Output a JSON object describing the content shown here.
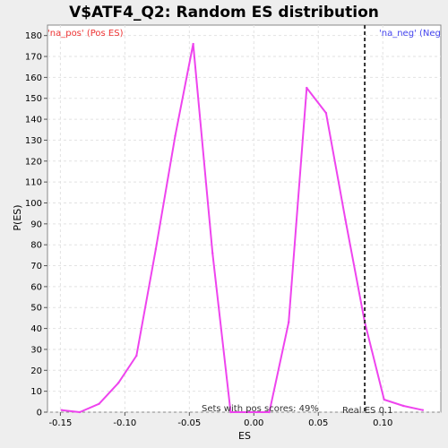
{
  "chart_data": {
    "type": "line",
    "title": "V$ATF4_Q2: Random ES distribution",
    "xlabel": "ES",
    "ylabel": "P(ES)",
    "xlim": [
      -0.16,
      0.145
    ],
    "ylim": [
      0,
      185
    ],
    "x_ticks": [
      -0.15,
      -0.1,
      -0.05,
      0.0,
      0.05,
      0.1
    ],
    "x_tick_labels": [
      "-0.15",
      "-0.10",
      "-0.05",
      "0.00",
      "0.05",
      "0.10"
    ],
    "y_ticks": [
      0,
      10,
      20,
      30,
      40,
      50,
      60,
      70,
      80,
      90,
      100,
      110,
      120,
      130,
      140,
      150,
      160,
      170,
      180
    ],
    "grid": true,
    "series": [
      {
        "color": "#ee44ee",
        "x": [
          -0.149,
          -0.135,
          -0.12,
          -0.105,
          -0.091,
          -0.076,
          -0.061,
          -0.047,
          -0.032,
          -0.018,
          -0.003,
          0.012,
          0.027,
          0.041,
          0.056,
          0.071,
          0.086,
          0.101,
          0.116,
          0.131
        ],
        "y": [
          1,
          0,
          4,
          14,
          27,
          78,
          132,
          176,
          76,
          0,
          0,
          0,
          43,
          155,
          143,
          92,
          43,
          6,
          3,
          1
        ]
      }
    ],
    "real_es": 0.086,
    "annotations": {
      "pos_label": "'na_pos' (Pos ES)",
      "neg_label": "'na_neg' (Neg",
      "sets_text": "Sets with pos scores: 49%",
      "real_text": "Real ES 0.1"
    },
    "colors": {
      "pos_label": "#ee3333",
      "neg_label": "#4444ee",
      "grid": "#e2e2e2",
      "real_line": "#333333"
    }
  }
}
